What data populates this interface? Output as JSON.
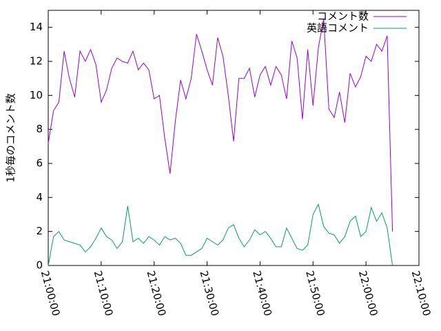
{
  "chart_data": {
    "type": "line",
    "y_label": "1秒毎のコメント数",
    "x": [
      "21:00:00",
      "21:01:00",
      "21:02:00",
      "21:03:00",
      "21:04:00",
      "21:05:00",
      "21:06:00",
      "21:07:00",
      "21:08:00",
      "21:09:00",
      "21:10:00",
      "21:11:00",
      "21:12:00",
      "21:13:00",
      "21:14:00",
      "21:15:00",
      "21:16:00",
      "21:17:00",
      "21:18:00",
      "21:19:00",
      "21:20:00",
      "21:21:00",
      "21:22:00",
      "21:23:00",
      "21:24:00",
      "21:25:00",
      "21:26:00",
      "21:27:00",
      "21:28:00",
      "21:29:00",
      "21:30:00",
      "21:31:00",
      "21:32:00",
      "21:33:00",
      "21:34:00",
      "21:35:00",
      "21:36:00",
      "21:37:00",
      "21:38:00",
      "21:39:00",
      "21:40:00",
      "21:41:00",
      "21:42:00",
      "21:43:00",
      "21:44:00",
      "21:45:00",
      "21:46:00",
      "21:47:00",
      "21:48:00",
      "21:49:00",
      "21:50:00",
      "21:51:00",
      "21:52:00",
      "21:53:00",
      "21:54:00",
      "21:55:00",
      "21:56:00",
      "21:57:00",
      "21:58:00",
      "21:59:00",
      "22:00:00",
      "22:01:00",
      "22:02:00",
      "22:03:00",
      "22:04:00",
      "22:05:00"
    ],
    "series": [
      {
        "name": "コメント数",
        "color": "#9400d3",
        "values": [
          7.2,
          9.1,
          9.6,
          12.6,
          11.0,
          9.9,
          12.6,
          12.0,
          12.7,
          11.8,
          9.6,
          10.3,
          11.6,
          12.2,
          12.0,
          11.9,
          12.6,
          11.5,
          11.9,
          11.5,
          9.8,
          10.0,
          7.5,
          5.4,
          8.5,
          10.9,
          9.8,
          11.0,
          13.6,
          12.6,
          11.5,
          10.6,
          13.4,
          12.3,
          10.0,
          7.3,
          11.0,
          11.0,
          11.6,
          9.9,
          11.2,
          11.7,
          10.6,
          11.7,
          11.2,
          9.8,
          13.2,
          12.2,
          8.6,
          12.7,
          9.4,
          12.8,
          14.5,
          9.2,
          8.7,
          10.2,
          8.4,
          11.3,
          10.5,
          11.1,
          12.3,
          12.0,
          13.0,
          12.6,
          13.5,
          2.0
        ]
      },
      {
        "name": "英語コメント",
        "color": "#009e73",
        "values": [
          0,
          1.7,
          2.0,
          1.5,
          1.4,
          1.3,
          1.2,
          0.8,
          1.1,
          1.6,
          2.2,
          1.7,
          1.5,
          1.0,
          1.4,
          3.5,
          1.4,
          1.6,
          1.3,
          1.7,
          1.5,
          1.2,
          1.7,
          1.5,
          1.6,
          1.3,
          0.6,
          0.6,
          0.8,
          1.0,
          1.6,
          1.4,
          1.2,
          1.5,
          2.2,
          2.4,
          1.6,
          1.1,
          1.5,
          2.1,
          1.8,
          2.0,
          1.6,
          1.1,
          1.1,
          2.2,
          1.6,
          1.0,
          0.9,
          1.2,
          3.0,
          3.6,
          2.3,
          1.9,
          1.8,
          1.3,
          1.7,
          2.6,
          2.9,
          1.7,
          2.0,
          3.4,
          2.6,
          3.1,
          2.2,
          0
        ]
      }
    ],
    "xlim": [
      "21:00:00",
      "22:10:00"
    ],
    "xticks": [
      "21:00:00",
      "21:10:00",
      "21:20:00",
      "21:30:00",
      "21:40:00",
      "21:50:00",
      "22:00:00",
      "22:10:00"
    ],
    "ylim": [
      0,
      15
    ],
    "yticks": [
      0,
      2,
      4,
      6,
      8,
      10,
      12,
      14
    ],
    "legend": "top-right"
  }
}
